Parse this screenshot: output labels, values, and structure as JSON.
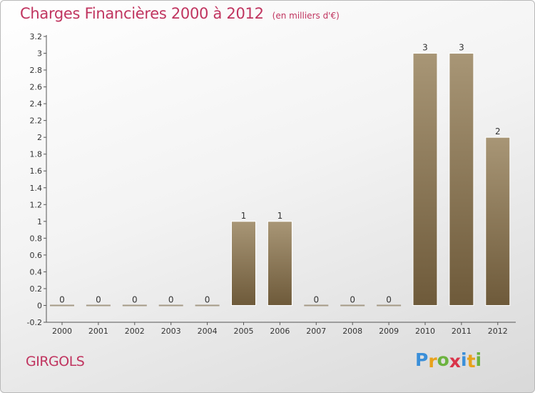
{
  "header": {
    "title": "Charges Financières 2000 à 2012",
    "subtitle": "(en milliers d'€)"
  },
  "commune": "GIRGOLS",
  "logo": {
    "letters": [
      "P",
      "r",
      "o",
      "x",
      "i",
      "t",
      "i"
    ],
    "colors": [
      "#3a8fd9",
      "#e8a21b",
      "#6cb33f",
      "#d9344a",
      "#3a8fd9",
      "#e8a21b",
      "#6cb33f"
    ]
  },
  "colors": {
    "bar_top": "#a89676",
    "bar_bottom": "#6e5a3a",
    "zero_bar": "#a59a86",
    "axis": "#555555",
    "accent": "#c0345f"
  },
  "chart_data": {
    "type": "bar",
    "categories": [
      "2000",
      "2001",
      "2002",
      "2003",
      "2004",
      "2005",
      "2006",
      "2007",
      "2008",
      "2009",
      "2010",
      "2011",
      "2012"
    ],
    "values": [
      0,
      0,
      0,
      0,
      0,
      1,
      1,
      0,
      0,
      0,
      3,
      3,
      2
    ],
    "data_labels": [
      "0",
      "0",
      "0",
      "0",
      "0",
      "1",
      "1",
      "0",
      "0",
      "0",
      "3",
      "3",
      "2"
    ],
    "ylim": [
      -0.2,
      3.2
    ],
    "yticks": [
      -0.2,
      0,
      0.2,
      0.4,
      0.6,
      0.8,
      1,
      1.2,
      1.4,
      1.6,
      1.8,
      2,
      2.2,
      2.4,
      2.6,
      2.8,
      3,
      3.2
    ],
    "ytick_labels": [
      "-0.2",
      "0",
      "0.2",
      "0.4",
      "0.6",
      "0.8",
      "1",
      "1.2",
      "1.4",
      "1.6",
      "1.8",
      "2",
      "2.2",
      "2.4",
      "2.6",
      "2.8",
      "3",
      "3.2"
    ],
    "grid": false,
    "legend": "none"
  }
}
